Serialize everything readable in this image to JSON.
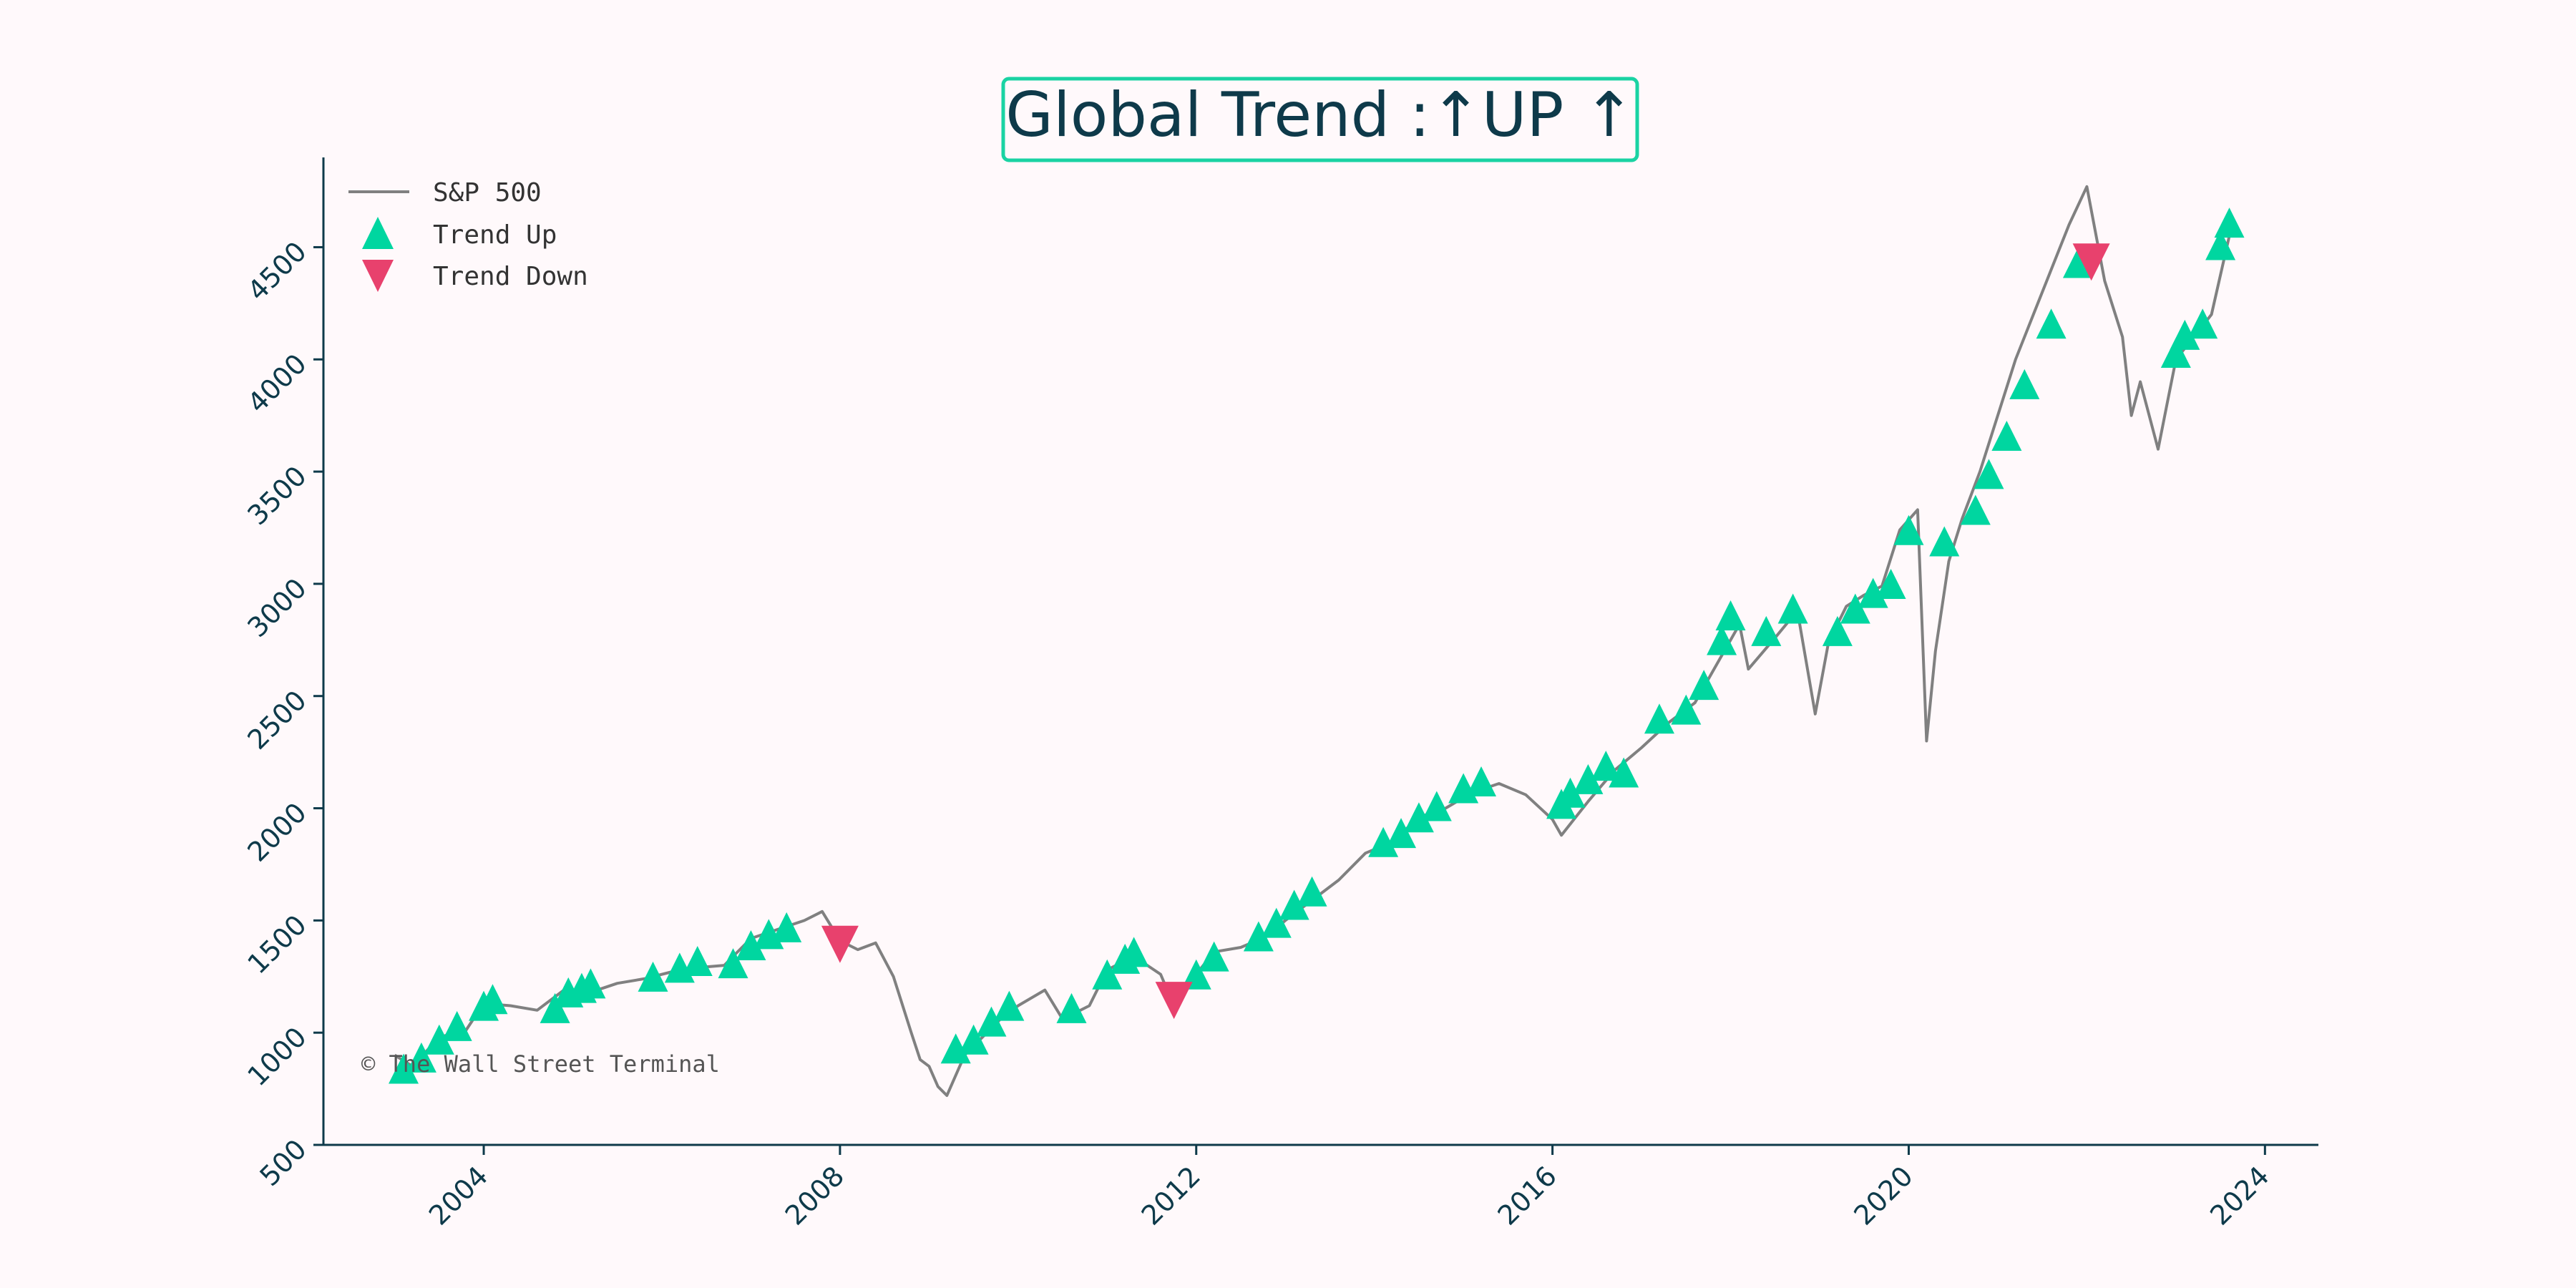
{
  "chart_data": {
    "type": "line",
    "title": "Global Trend :↑UP ↑",
    "xlabel": "",
    "ylabel": "",
    "xlim": [
      2002.2,
      2024.6
    ],
    "ylim": [
      500,
      4900
    ],
    "x_ticks": [
      2004,
      2008,
      2012,
      2016,
      2020,
      2024
    ],
    "x_tick_labels": [
      "2004",
      "2008",
      "2012",
      "2016",
      "2020",
      "2024"
    ],
    "y_ticks": [
      500,
      1000,
      1500,
      2000,
      2500,
      3000,
      3500,
      4000,
      4500
    ],
    "y_tick_labels": [
      "500",
      "1000",
      "1500",
      "2000",
      "2500",
      "3000",
      "3500",
      "4000",
      "4500"
    ],
    "grid": false,
    "legend_placement": "top-left",
    "legend": [
      "S&P 500",
      "Trend Up",
      "Trend Down"
    ],
    "annotation": "© The Wall Street Terminal",
    "colors": {
      "line": "#808080",
      "up": "#00d6a0",
      "down": "#e8416d",
      "axis": "#0e3a4a",
      "title_border": "#1ad3a3",
      "background": "#fff9fb"
    },
    "series": [
      {
        "name": "S&P 500",
        "x": [
          2003.0,
          2003.2,
          2003.5,
          2003.8,
          2004.0,
          2004.3,
          2004.6,
          2004.9,
          2005.2,
          2005.5,
          2005.8,
          2006.1,
          2006.4,
          2006.7,
          2007.0,
          2007.3,
          2007.6,
          2007.8,
          2008.0,
          2008.2,
          2008.4,
          2008.6,
          2008.8,
          2008.9,
          2009.0,
          2009.1,
          2009.2,
          2009.4,
          2009.6,
          2009.8,
          2010.0,
          2010.3,
          2010.5,
          2010.8,
          2011.0,
          2011.3,
          2011.6,
          2011.75,
          2011.9,
          2012.2,
          2012.5,
          2012.8,
          2013.0,
          2013.3,
          2013.6,
          2013.9,
          2014.2,
          2014.5,
          2014.8,
          2015.1,
          2015.4,
          2015.7,
          2016.0,
          2016.1,
          2016.4,
          2016.7,
          2017.0,
          2017.3,
          2017.6,
          2017.9,
          2018.1,
          2018.2,
          2018.5,
          2018.75,
          2018.95,
          2019.1,
          2019.3,
          2019.5,
          2019.7,
          2019.9,
          2020.1,
          2020.2,
          2020.3,
          2020.45,
          2020.6,
          2020.8,
          2021.0,
          2021.2,
          2021.4,
          2021.6,
          2021.8,
          2022.0,
          2022.2,
          2022.4,
          2022.5,
          2022.6,
          2022.8,
          2022.9,
          2023.0,
          2023.2,
          2023.4,
          2023.6
        ],
        "values": [
          900,
          850,
          980,
          1010,
          1130,
          1120,
          1100,
          1190,
          1180,
          1220,
          1240,
          1270,
          1290,
          1300,
          1420,
          1460,
          1500,
          1540,
          1410,
          1370,
          1400,
          1250,
          1000,
          880,
          850,
          760,
          720,
          900,
          980,
          1060,
          1120,
          1190,
          1060,
          1120,
          1280,
          1340,
          1260,
          1120,
          1210,
          1360,
          1380,
          1430,
          1500,
          1590,
          1680,
          1800,
          1850,
          1960,
          2000,
          2070,
          2110,
          2060,
          1950,
          1880,
          2030,
          2170,
          2270,
          2380,
          2470,
          2680,
          2820,
          2620,
          2760,
          2880,
          2420,
          2740,
          2900,
          2950,
          2990,
          3240,
          3330,
          2300,
          2700,
          3100,
          3290,
          3500,
          3750,
          4000,
          4200,
          4400,
          4600,
          4770,
          4350,
          4100,
          3750,
          3900,
          3600,
          3800,
          4000,
          4100,
          4200,
          4550
        ]
      },
      {
        "name": "Trend Up",
        "x": [
          2003.1,
          2003.3,
          2003.5,
          2003.7,
          2004.0,
          2004.1,
          2004.8,
          2004.95,
          2005.1,
          2005.2,
          2005.9,
          2006.2,
          2006.4,
          2006.8,
          2007.0,
          2007.2,
          2007.4,
          2009.3,
          2009.5,
          2009.7,
          2009.9,
          2010.6,
          2011.0,
          2011.2,
          2011.3,
          2012.0,
          2012.2,
          2012.7,
          2012.9,
          2013.1,
          2013.3,
          2014.1,
          2014.3,
          2014.5,
          2014.7,
          2015.0,
          2015.2,
          2016.1,
          2016.2,
          2016.4,
          2016.6,
          2016.8,
          2017.2,
          2017.5,
          2017.7,
          2017.9,
          2018.0,
          2018.4,
          2018.7,
          2019.2,
          2019.4,
          2019.6,
          2019.8,
          2020.0,
          2020.4,
          2020.75,
          2020.9,
          2021.1,
          2021.3,
          2021.6,
          2021.9,
          2023.0,
          2023.1,
          2023.3,
          2023.5,
          2023.6
        ],
        "values": [
          830,
          880,
          960,
          1020,
          1110,
          1140,
          1100,
          1170,
          1190,
          1210,
          1240,
          1280,
          1310,
          1300,
          1380,
          1430,
          1460,
          920,
          960,
          1040,
          1110,
          1100,
          1250,
          1320,
          1350,
          1250,
          1330,
          1420,
          1480,
          1560,
          1620,
          1840,
          1880,
          1950,
          2000,
          2080,
          2110,
          2010,
          2060,
          2120,
          2180,
          2150,
          2390,
          2430,
          2540,
          2740,
          2850,
          2780,
          2880,
          2780,
          2880,
          2950,
          2990,
          3230,
          3180,
          3320,
          3480,
          3650,
          3880,
          4150,
          4420,
          4020,
          4100,
          4150,
          4500,
          4600
        ]
      },
      {
        "name": "Trend Down",
        "x": [
          2008.0,
          2011.75,
          2022.05
        ],
        "values": [
          1400,
          1150,
          4440
        ]
      }
    ]
  }
}
